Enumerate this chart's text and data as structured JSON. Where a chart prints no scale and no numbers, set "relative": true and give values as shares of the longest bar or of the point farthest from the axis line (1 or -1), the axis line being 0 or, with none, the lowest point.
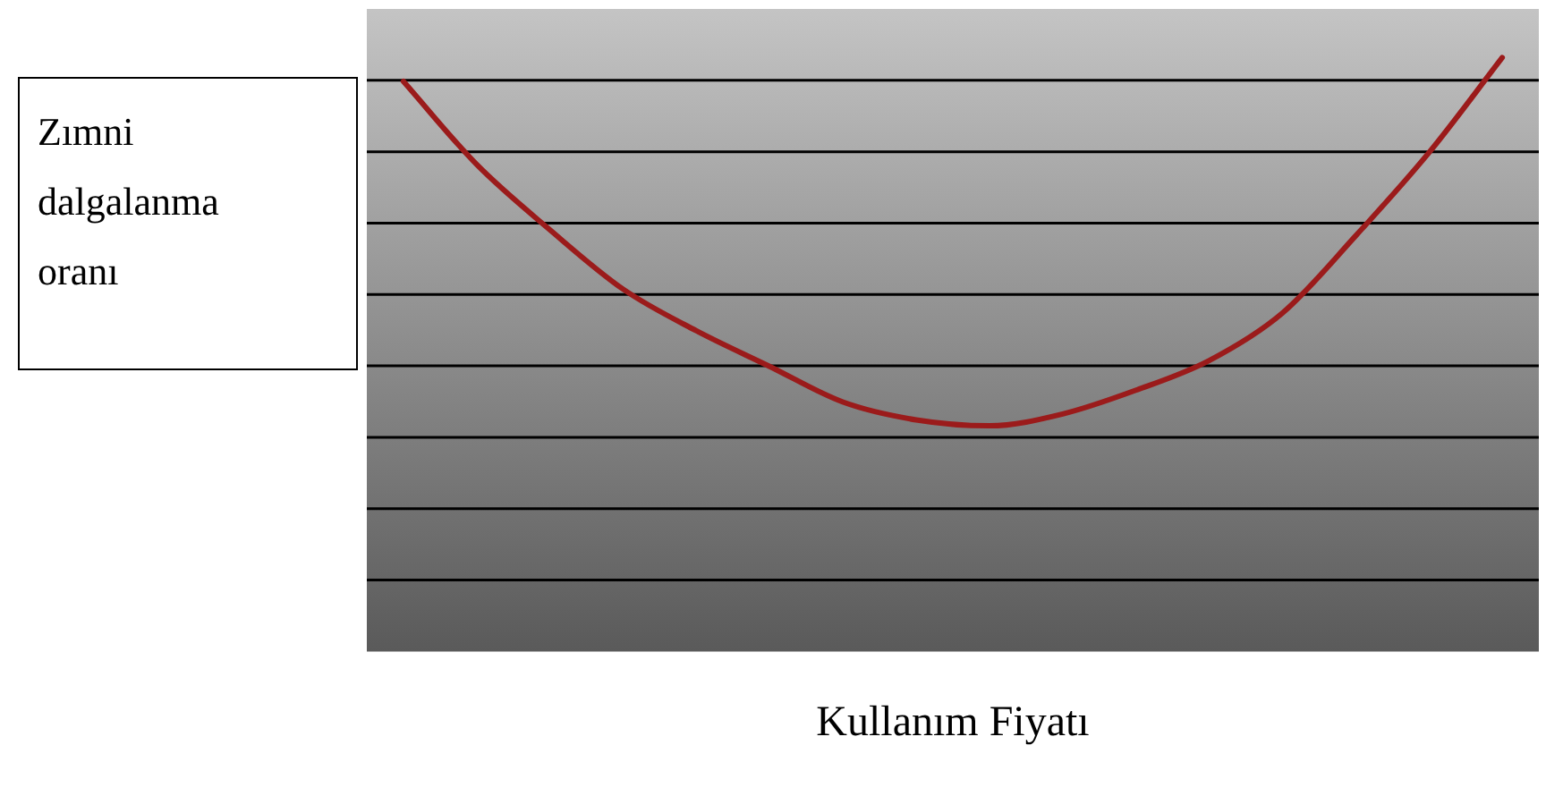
{
  "chart_data": {
    "type": "line",
    "relative": true,
    "xlabel": "Kullanım Fiyatı",
    "ylabel": "Zımni dalgalanma oranı",
    "grid": "y",
    "legend": false,
    "marker": "none",
    "line_style": "solid",
    "categories": [
      null,
      null,
      null,
      null,
      null,
      null,
      null,
      null,
      null,
      null,
      null,
      null,
      null,
      null,
      null,
      null
    ],
    "series": [
      {
        "color": "#9b1b1b",
        "values": [
          0.96,
          0.82,
          0.71,
          0.61,
          0.54,
          0.48,
          0.42,
          0.39,
          0.38,
          0.4,
          0.44,
          0.49,
          0.57,
          0.7,
          0.84,
          1
        ]
      }
    ]
  }
}
